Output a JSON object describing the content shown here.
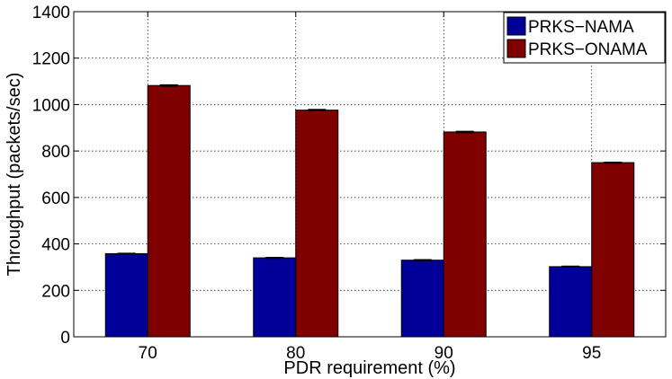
{
  "chart_data": {
    "type": "bar",
    "title": "",
    "xlabel": "PDR requirement (%)",
    "ylabel": "Throughput (packets/sec)",
    "categories": [
      "70",
      "80",
      "90",
      "95"
    ],
    "ylim": [
      0,
      1400
    ],
    "yticks": [
      "0",
      "200",
      "400",
      "600",
      "800",
      "1000",
      "1200",
      "1400"
    ],
    "grid": true,
    "legend_position": "top-right",
    "error_bars": true,
    "series": [
      {
        "name": "PRKS−NAMA",
        "color": "#000099",
        "values": [
          358,
          340,
          330,
          302
        ],
        "errors": [
          2,
          2,
          2,
          2
        ]
      },
      {
        "name": "PRKS−ONAMA",
        "color": "#800000",
        "values": [
          1082,
          976,
          882,
          750
        ],
        "errors": [
          3,
          3,
          3,
          2
        ]
      }
    ]
  }
}
